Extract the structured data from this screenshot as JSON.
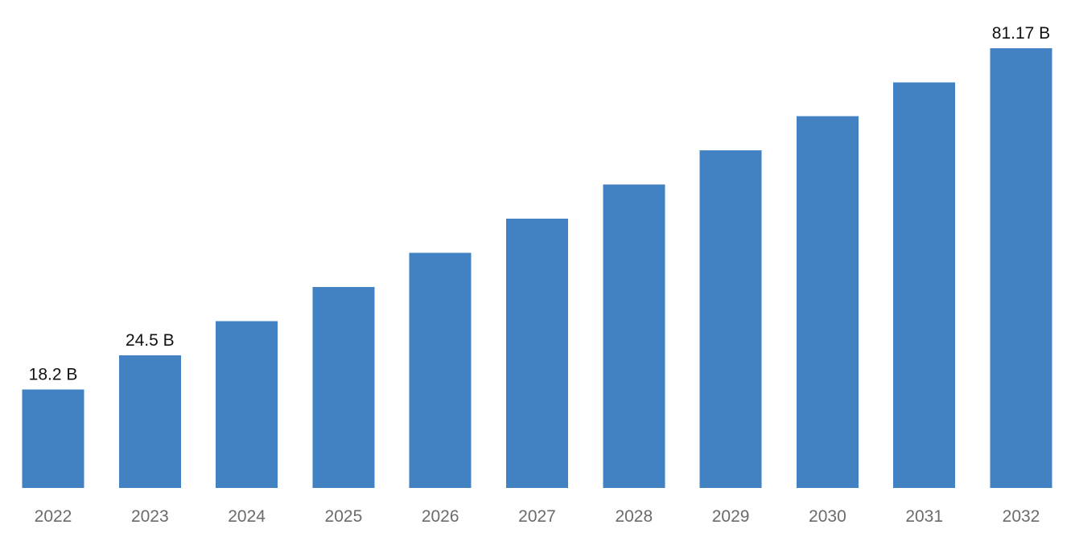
{
  "chart_data": {
    "type": "bar",
    "title": "",
    "xlabel": "",
    "ylabel": "",
    "categories": [
      "2022",
      "2023",
      "2024",
      "2025",
      "2026",
      "2027",
      "2028",
      "2029",
      "2030",
      "2031",
      "2032"
    ],
    "values": [
      18.2,
      24.5,
      30.8,
      37.1,
      43.4,
      49.7,
      56.0,
      62.3,
      68.6,
      74.9,
      81.17
    ],
    "value_unit": "B",
    "data_labels": [
      "18.2 B",
      "24.5 B",
      "",
      "",
      "",
      "",
      "",
      "",
      "",
      "",
      "81.17 B"
    ],
    "ylim": [
      0,
      81.17
    ],
    "grid": false,
    "legend": "none",
    "bar_color": "#4282C3",
    "tick_color": "#6b6b6b",
    "label_color": "#111111"
  }
}
